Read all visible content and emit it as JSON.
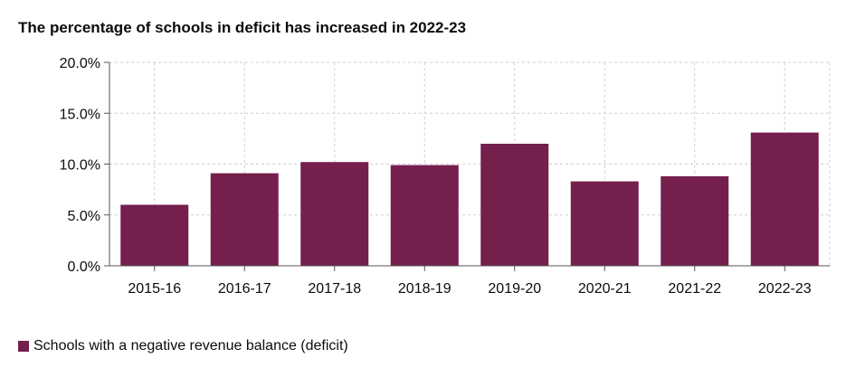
{
  "chart_data": {
    "type": "bar",
    "title": "The percentage of schools in deficit has increased in 2022-23",
    "categories": [
      "2015-16",
      "2016-17",
      "2017-18",
      "2018-19",
      "2019-20",
      "2020-21",
      "2021-22",
      "2022-23"
    ],
    "series": [
      {
        "name": "Schools with a negative revenue balance (deficit)",
        "values": [
          6.0,
          9.1,
          10.2,
          9.9,
          12.0,
          8.3,
          8.8,
          13.1
        ],
        "color": "#741f4c"
      }
    ],
    "ylim": [
      0,
      20
    ],
    "yticks": [
      "0.0%",
      "5.0%",
      "10.0%",
      "15.0%",
      "20.0%"
    ],
    "ytick_values": [
      0,
      5,
      10,
      15,
      20
    ],
    "grid": true,
    "legend_position": "bottom-left",
    "xlabel": "",
    "ylabel": ""
  }
}
